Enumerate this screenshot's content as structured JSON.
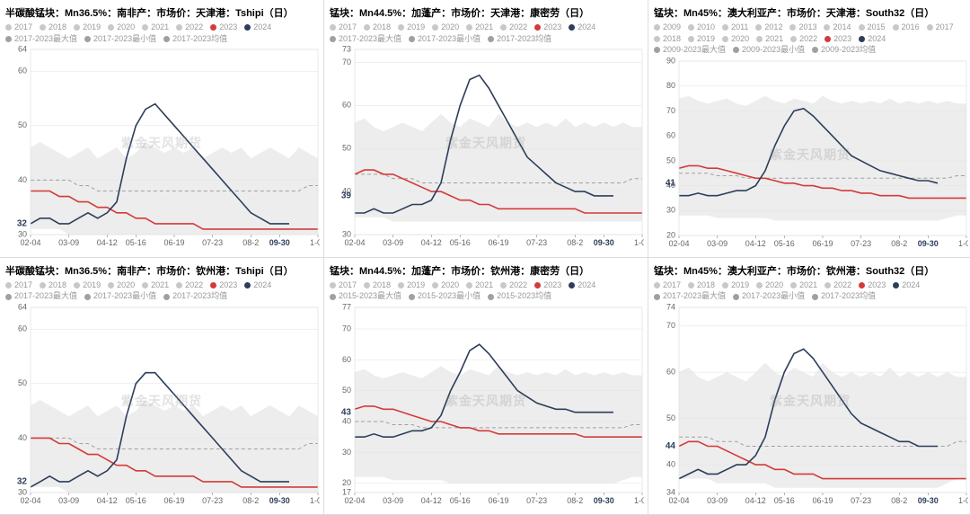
{
  "watermark": "紫金天风期货",
  "global": {
    "xticks_labels": [
      "02-04",
      "03-09",
      "04-12",
      "05-16",
      "06-19",
      "07-23",
      "08-2",
      "09-30",
      "1-02"
    ],
    "highlight_tick_index": 7,
    "colors": {
      "background": "#ffffff",
      "grid": "#e0e0e0",
      "band": "#e5e5e5",
      "series_gray": "#c8c8c8",
      "series_avg": "#a0a0a0",
      "series_2023": "#d43a3a",
      "series_2024": "#2c3e5a",
      "axis_text": "#666666",
      "title_text": "#000000",
      "legend_text": "#999999"
    },
    "title_fontsize": 11,
    "legend_fontsize": 9,
    "axis_fontsize": 9,
    "line_width_main": 1.6,
    "line_width_gray": 1.0,
    "dash_avg": "4,3"
  },
  "panels": [
    {
      "title": "半碳酸锰块：Mn36.5%：南非产：市场价：天津港：Tshipi（日）",
      "legend_years": [
        "2017",
        "2018",
        "2019",
        "2020",
        "2021",
        "2022",
        "2023",
        "2024"
      ],
      "legend_stats": [
        "2017-2023最大值",
        "2017-2023最小值",
        "2017-2023均值"
      ],
      "ylim": [
        30,
        64
      ],
      "yticks": [
        30,
        40,
        50,
        60,
        64
      ],
      "end_label": {
        "value": 32,
        "color": "#2c3e5a"
      },
      "band_top": [
        46,
        47,
        46,
        45,
        44,
        45,
        46,
        44,
        45,
        46,
        44,
        45,
        47,
        46,
        45,
        46,
        45,
        46,
        44,
        45,
        46,
        45,
        46,
        44,
        45,
        46,
        45,
        44,
        46,
        45,
        44
      ],
      "band_bottom": [
        31,
        31,
        31,
        31,
        30,
        30,
        30,
        30,
        30,
        30,
        30,
        30,
        30,
        30,
        30,
        30,
        30,
        30,
        30,
        30,
        30,
        30,
        30,
        30,
        30,
        30,
        30,
        30,
        30,
        30,
        30
      ],
      "avg": [
        40,
        40,
        40,
        40,
        40,
        39,
        39,
        38,
        38,
        38,
        38,
        38,
        38,
        38,
        38,
        38,
        38,
        38,
        38,
        38,
        38,
        38,
        38,
        38,
        38,
        38,
        38,
        38,
        38,
        39,
        39
      ],
      "y2023": [
        38,
        38,
        38,
        37,
        37,
        36,
        36,
        35,
        35,
        34,
        34,
        33,
        33,
        32,
        32,
        32,
        32,
        32,
        31,
        31,
        31,
        31,
        31,
        31,
        31,
        31,
        31,
        31,
        31,
        31,
        31
      ],
      "y2024": [
        32,
        33,
        33,
        32,
        32,
        33,
        34,
        33,
        34,
        36,
        44,
        50,
        53,
        54,
        52,
        50,
        48,
        46,
        44,
        42,
        40,
        38,
        36,
        34,
        33,
        32,
        32,
        32,
        null,
        null,
        null
      ]
    },
    {
      "title": "锰块：Mn44.5%：加蓬产：市场价：天津港：康密劳（日）",
      "legend_years": [
        "2017",
        "2018",
        "2019",
        "2020",
        "2021",
        "2022",
        "2023",
        "2024"
      ],
      "legend_stats": [
        "2017-2023最大值",
        "2017-2023最小值",
        "2017-2023均值"
      ],
      "ylim": [
        30,
        73
      ],
      "yticks": [
        30,
        40,
        50,
        60,
        70,
        73
      ],
      "end_label": {
        "value": 39,
        "color": "#2c3e5a"
      },
      "band_top": [
        56,
        57,
        55,
        54,
        55,
        56,
        55,
        54,
        56,
        58,
        56,
        55,
        57,
        56,
        55,
        58,
        56,
        55,
        56,
        55,
        56,
        55,
        57,
        55,
        56,
        55,
        56,
        55,
        56,
        55,
        55
      ],
      "band_bottom": [
        34,
        34,
        34,
        34,
        33,
        33,
        33,
        33,
        33,
        33,
        33,
        33,
        33,
        33,
        33,
        33,
        33,
        33,
        33,
        33,
        33,
        33,
        33,
        33,
        33,
        33,
        33,
        33,
        33,
        33,
        33
      ],
      "avg": [
        44,
        44,
        44,
        44,
        43,
        43,
        43,
        42,
        42,
        42,
        42,
        42,
        42,
        42,
        42,
        42,
        42,
        42,
        42,
        42,
        42,
        42,
        42,
        42,
        42,
        42,
        42,
        42,
        42,
        43,
        43
      ],
      "y2023": [
        44,
        45,
        45,
        44,
        44,
        43,
        42,
        41,
        40,
        40,
        39,
        38,
        38,
        37,
        37,
        36,
        36,
        36,
        36,
        36,
        36,
        36,
        36,
        36,
        35,
        35,
        35,
        35,
        35,
        35,
        35
      ],
      "y2024": [
        35,
        35,
        36,
        35,
        35,
        36,
        37,
        37,
        38,
        42,
        52,
        60,
        66,
        67,
        64,
        60,
        56,
        52,
        48,
        46,
        44,
        42,
        41,
        40,
        40,
        39,
        39,
        39,
        null,
        null,
        null
      ]
    },
    {
      "title": "锰块：Mn45%：澳大利亚产：市场价：天津港：South32（日）",
      "legend_years": [
        "2009",
        "2010",
        "2011",
        "2012",
        "2013",
        "2014",
        "2015",
        "2016",
        "2017",
        "2018",
        "2019",
        "2020",
        "2021",
        "2022",
        "2023",
        "2024"
      ],
      "legend_stats": [
        "2009-2023最大值",
        "2009-2023最小值",
        "2009-2023均值"
      ],
      "ylim": [
        20,
        90
      ],
      "yticks": [
        20,
        30,
        40,
        50,
        60,
        70,
        80,
        90
      ],
      "end_label": {
        "value": 41,
        "color": "#2c3e5a"
      },
      "band_top": [
        75,
        76,
        74,
        73,
        74,
        75,
        73,
        72,
        74,
        76,
        74,
        73,
        75,
        74,
        73,
        76,
        74,
        73,
        74,
        73,
        74,
        73,
        75,
        73,
        74,
        73,
        74,
        73,
        74,
        73,
        73
      ],
      "band_bottom": [
        28,
        28,
        28,
        28,
        27,
        27,
        27,
        27,
        27,
        27,
        26,
        26,
        26,
        26,
        26,
        26,
        26,
        26,
        26,
        26,
        26,
        26,
        26,
        26,
        26,
        26,
        26,
        26,
        27,
        28,
        28
      ],
      "avg": [
        45,
        45,
        45,
        45,
        44,
        44,
        44,
        43,
        43,
        43,
        43,
        43,
        43,
        43,
        43,
        43,
        43,
        43,
        43,
        43,
        43,
        43,
        43,
        43,
        43,
        43,
        43,
        43,
        43,
        44,
        44
      ],
      "y2023": [
        47,
        48,
        48,
        47,
        47,
        46,
        45,
        44,
        43,
        43,
        42,
        41,
        41,
        40,
        40,
        39,
        39,
        38,
        38,
        37,
        37,
        36,
        36,
        36,
        35,
        35,
        35,
        35,
        35,
        35,
        35
      ],
      "y2024": [
        36,
        36,
        37,
        36,
        36,
        37,
        38,
        38,
        40,
        46,
        56,
        64,
        70,
        71,
        68,
        64,
        60,
        56,
        52,
        50,
        48,
        46,
        45,
        44,
        43,
        42,
        42,
        41,
        null,
        null,
        null
      ]
    },
    {
      "title": "半碳酸锰块：Mn36.5%：南非产：市场价：钦州港：Tshipi（日）",
      "legend_years": [
        "2017",
        "2018",
        "2019",
        "2020",
        "2021",
        "2022",
        "2023",
        "2024"
      ],
      "legend_stats": [
        "2017-2023最大值",
        "2017-2023最小值",
        "2017-2023均值"
      ],
      "ylim": [
        30,
        64
      ],
      "yticks": [
        30,
        40,
        50,
        60,
        64
      ],
      "end_label": {
        "value": 32,
        "color": "#2c3e5a"
      },
      "band_top": [
        46,
        47,
        46,
        45,
        44,
        45,
        46,
        44,
        45,
        46,
        44,
        45,
        47,
        46,
        45,
        46,
        45,
        46,
        44,
        45,
        46,
        45,
        46,
        44,
        45,
        46,
        45,
        44,
        46,
        45,
        44
      ],
      "band_bottom": [
        31,
        31,
        31,
        31,
        30,
        30,
        30,
        30,
        30,
        30,
        30,
        30,
        30,
        30,
        30,
        30,
        30,
        30,
        30,
        30,
        30,
        30,
        30,
        30,
        30,
        30,
        30,
        30,
        30,
        30,
        30
      ],
      "avg": [
        40,
        40,
        40,
        40,
        40,
        39,
        39,
        38,
        38,
        38,
        38,
        38,
        38,
        38,
        38,
        38,
        38,
        38,
        38,
        38,
        38,
        38,
        38,
        38,
        38,
        38,
        38,
        38,
        38,
        39,
        39
      ],
      "y2023": [
        40,
        40,
        40,
        39,
        39,
        38,
        37,
        37,
        36,
        35,
        35,
        34,
        34,
        33,
        33,
        33,
        33,
        33,
        32,
        32,
        32,
        32,
        31,
        31,
        31,
        31,
        31,
        31,
        31,
        31,
        31
      ],
      "y2024": [
        31,
        32,
        33,
        32,
        32,
        33,
        34,
        33,
        34,
        36,
        44,
        50,
        52,
        52,
        50,
        48,
        46,
        44,
        42,
        40,
        38,
        36,
        34,
        33,
        32,
        32,
        32,
        32,
        null,
        null,
        null
      ]
    },
    {
      "title": "锰块：Mn44.5%：加蓬产：市场价：钦州港：康密劳（日）",
      "legend_years": [
        "2017",
        "2018",
        "2019",
        "2020",
        "2021",
        "2022",
        "2023",
        "2024"
      ],
      "legend_stats": [
        "2015-2023最大值",
        "2015-2023最小值",
        "2015-2023均值"
      ],
      "ylim": [
        17,
        77
      ],
      "yticks": [
        17,
        20,
        30,
        40,
        50,
        60,
        70,
        77
      ],
      "end_label": {
        "value": 43,
        "color": "#2c3e5a"
      },
      "band_top": [
        56,
        57,
        55,
        54,
        55,
        56,
        55,
        54,
        56,
        58,
        56,
        55,
        57,
        56,
        55,
        58,
        56,
        55,
        56,
        55,
        56,
        55,
        57,
        55,
        56,
        55,
        56,
        55,
        56,
        55,
        55
      ],
      "band_bottom": [
        22,
        22,
        22,
        22,
        21,
        21,
        21,
        21,
        21,
        21,
        20,
        20,
        20,
        20,
        20,
        20,
        20,
        20,
        20,
        20,
        20,
        20,
        20,
        20,
        20,
        20,
        20,
        20,
        21,
        22,
        22
      ],
      "avg": [
        40,
        40,
        40,
        40,
        39,
        39,
        39,
        38,
        38,
        38,
        38,
        38,
        38,
        38,
        38,
        38,
        38,
        38,
        38,
        38,
        38,
        38,
        38,
        38,
        38,
        38,
        38,
        38,
        38,
        39,
        39
      ],
      "y2023": [
        44,
        45,
        45,
        44,
        44,
        43,
        42,
        41,
        40,
        40,
        39,
        38,
        38,
        37,
        37,
        36,
        36,
        36,
        36,
        36,
        36,
        36,
        36,
        36,
        35,
        35,
        35,
        35,
        35,
        35,
        35
      ],
      "y2024": [
        35,
        35,
        36,
        35,
        35,
        36,
        37,
        37,
        38,
        42,
        50,
        56,
        63,
        65,
        62,
        58,
        54,
        50,
        48,
        46,
        45,
        44,
        44,
        43,
        43,
        43,
        43,
        43,
        null,
        null,
        null
      ]
    },
    {
      "title": "锰块：Mn45%：澳大利亚产：市场价：钦州港：South32（日）",
      "legend_years": [
        "2017",
        "2018",
        "2019",
        "2020",
        "2021",
        "2022",
        "2023",
        "2024"
      ],
      "legend_stats": [
        "2017-2023最大值",
        "2017-2023最小值",
        "2017-2023均值"
      ],
      "ylim": [
        34,
        74
      ],
      "yticks": [
        34,
        40,
        50,
        60,
        70,
        74
      ],
      "end_label": {
        "value": 44,
        "color": "#2c3e5a"
      },
      "band_top": [
        60,
        61,
        59,
        58,
        59,
        60,
        59,
        58,
        60,
        62,
        60,
        59,
        61,
        60,
        59,
        62,
        60,
        59,
        60,
        59,
        60,
        59,
        61,
        59,
        60,
        59,
        60,
        59,
        60,
        59,
        59
      ],
      "band_bottom": [
        37,
        37,
        37,
        37,
        36,
        36,
        36,
        36,
        36,
        36,
        35,
        35,
        35,
        35,
        35,
        35,
        35,
        35,
        35,
        35,
        35,
        35,
        35,
        35,
        35,
        35,
        35,
        35,
        36,
        37,
        37
      ],
      "avg": [
        46,
        46,
        46,
        46,
        45,
        45,
        45,
        44,
        44,
        44,
        44,
        44,
        44,
        44,
        44,
        44,
        44,
        44,
        44,
        44,
        44,
        44,
        44,
        44,
        44,
        44,
        44,
        44,
        44,
        45,
        45
      ],
      "y2023": [
        44,
        45,
        45,
        44,
        44,
        43,
        42,
        41,
        40,
        40,
        39,
        39,
        38,
        38,
        38,
        37,
        37,
        37,
        37,
        37,
        37,
        37,
        37,
        37,
        37,
        37,
        37,
        37,
        37,
        37,
        37
      ],
      "y2024": [
        37,
        38,
        39,
        38,
        38,
        39,
        40,
        40,
        42,
        46,
        54,
        60,
        64,
        65,
        63,
        60,
        57,
        54,
        51,
        49,
        48,
        47,
        46,
        45,
        45,
        44,
        44,
        44,
        null,
        null,
        null
      ]
    }
  ]
}
